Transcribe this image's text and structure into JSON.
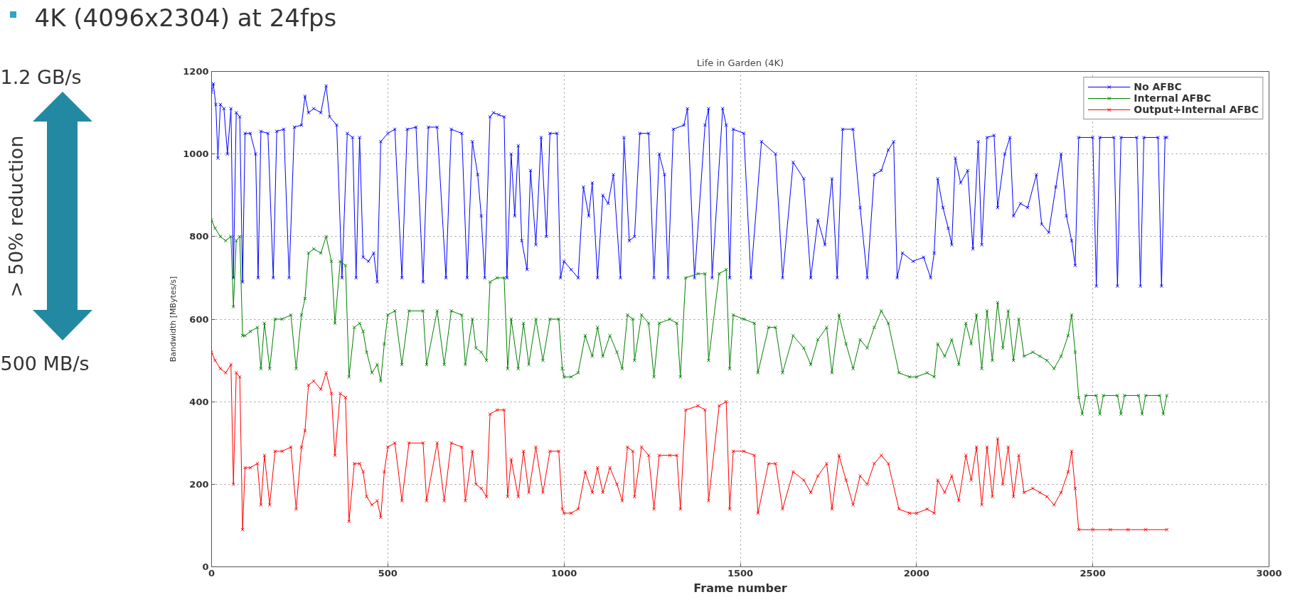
{
  "chart_data": {
    "type": "line",
    "title": "Life in Garden (4K)",
    "xlabel": "Frame number",
    "ylabel": "Bandwidth [MBytes/s]",
    "annotations": [
      "4K (4096x2304) at 24fps",
      "1.2 GB/s",
      "> 50% reduction",
      "500 MB/s"
    ],
    "xlim": [
      0,
      3000
    ],
    "xticks": [
      0,
      500,
      1000,
      1500,
      2000,
      2500,
      3000
    ],
    "ylim": [
      0,
      1200
    ],
    "yticks": [
      0,
      200,
      400,
      600,
      800,
      1000,
      1200
    ],
    "grid": true,
    "legend": "top right",
    "marker": "cross",
    "line_style": "solid",
    "series": [
      {
        "name": "No AFBC",
        "color": "#0000ff",
        "x": [
          0,
          5,
          12,
          18,
          25,
          35,
          45,
          55,
          62,
          70,
          80,
          88,
          95,
          110,
          125,
          132,
          140,
          160,
          175,
          185,
          205,
          220,
          235,
          255,
          265,
          275,
          290,
          310,
          325,
          335,
          355,
          370,
          385,
          400,
          410,
          420,
          430,
          445,
          460,
          470,
          480,
          500,
          520,
          540,
          555,
          580,
          600,
          615,
          640,
          665,
          680,
          710,
          725,
          740,
          755,
          765,
          775,
          790,
          800,
          815,
          830,
          838,
          850,
          860,
          870,
          880,
          895,
          905,
          920,
          935,
          950,
          960,
          980,
          990,
          1000,
          1020,
          1040,
          1055,
          1070,
          1080,
          1095,
          1110,
          1125,
          1140,
          1160,
          1170,
          1185,
          1200,
          1215,
          1240,
          1255,
          1270,
          1285,
          1295,
          1310,
          1340,
          1350,
          1370,
          1400,
          1410,
          1420,
          1450,
          1460,
          1470,
          1480,
          1510,
          1530,
          1560,
          1600,
          1620,
          1650,
          1680,
          1700,
          1720,
          1740,
          1760,
          1775,
          1790,
          1820,
          1840,
          1860,
          1880,
          1900,
          1920,
          1935,
          1945,
          1960,
          1990,
          2020,
          2040,
          2050,
          2060,
          2075,
          2090,
          2100,
          2110,
          2125,
          2145,
          2160,
          2175,
          2185,
          2200,
          2220,
          2230,
          2250,
          2265,
          2275,
          2295,
          2315,
          2340,
          2355,
          2375,
          2395,
          2410,
          2425,
          2440,
          2450,
          2460,
          2500,
          2510,
          2520,
          2560,
          2570,
          2580,
          2625,
          2635,
          2645,
          2685,
          2695,
          2705,
          2710
        ],
        "values": [
          1150,
          1170,
          1120,
          990,
          1120,
          1110,
          1000,
          1110,
          700,
          1100,
          1090,
          690,
          1050,
          1050,
          1000,
          700,
          1055,
          1050,
          700,
          1055,
          1060,
          700,
          1065,
          1070,
          1140,
          1100,
          1110,
          1100,
          1165,
          1090,
          1070,
          700,
          1050,
          1040,
          700,
          1040,
          750,
          740,
          760,
          690,
          1030,
          1050,
          1060,
          700,
          1060,
          1065,
          690,
          1065,
          1065,
          700,
          1060,
          1050,
          700,
          1030,
          950,
          850,
          700,
          1090,
          1100,
          1095,
          1090,
          700,
          1000,
          850,
          1020,
          790,
          720,
          960,
          780,
          1040,
          800,
          1050,
          1050,
          700,
          740,
          720,
          700,
          920,
          850,
          930,
          700,
          900,
          880,
          950,
          700,
          1040,
          790,
          800,
          1050,
          1050,
          700,
          1000,
          950,
          700,
          1060,
          1070,
          1110,
          700,
          1070,
          1110,
          700,
          1110,
          1070,
          700,
          1060,
          1050,
          700,
          1030,
          1000,
          700,
          980,
          940,
          700,
          840,
          780,
          940,
          700,
          1060,
          1060,
          870,
          700,
          950,
          960,
          1010,
          1030,
          700,
          760,
          740,
          750,
          700,
          760,
          940,
          870,
          820,
          780,
          990,
          930,
          960,
          770,
          1030,
          780,
          1040,
          1045,
          870,
          1000,
          1040,
          850,
          880,
          870,
          950,
          830,
          810,
          920,
          1000,
          850,
          790,
          730,
          1040,
          1040,
          680,
          1040,
          1040,
          680,
          1040,
          1040,
          680,
          1040,
          1040,
          680,
          1040,
          1040
        ]
      },
      {
        "name": "Internal AFBC",
        "color": "#008000",
        "x": [
          0,
          10,
          25,
          40,
          55,
          62,
          70,
          80,
          88,
          95,
          110,
          130,
          140,
          150,
          165,
          180,
          200,
          225,
          240,
          255,
          265,
          275,
          290,
          310,
          325,
          340,
          350,
          365,
          380,
          390,
          405,
          420,
          430,
          440,
          455,
          470,
          480,
          490,
          500,
          520,
          540,
          560,
          600,
          610,
          640,
          660,
          680,
          710,
          720,
          740,
          750,
          765,
          780,
          790,
          810,
          830,
          840,
          850,
          870,
          885,
          900,
          920,
          940,
          960,
          985,
          995,
          1000,
          1020,
          1040,
          1060,
          1080,
          1095,
          1110,
          1130,
          1150,
          1165,
          1180,
          1195,
          1200,
          1220,
          1240,
          1255,
          1270,
          1300,
          1320,
          1330,
          1345,
          1380,
          1400,
          1410,
          1440,
          1460,
          1470,
          1480,
          1510,
          1540,
          1550,
          1580,
          1600,
          1620,
          1650,
          1680,
          1700,
          1720,
          1745,
          1760,
          1780,
          1800,
          1820,
          1840,
          1860,
          1880,
          1900,
          1920,
          1950,
          1980,
          2000,
          2030,
          2050,
          2060,
          2080,
          2100,
          2120,
          2140,
          2155,
          2170,
          2185,
          2200,
          2215,
          2230,
          2245,
          2260,
          2275,
          2290,
          2305,
          2330,
          2350,
          2370,
          2390,
          2410,
          2430,
          2440,
          2450,
          2460,
          2470,
          2480,
          2510,
          2520,
          2530,
          2570,
          2580,
          2590,
          2630,
          2640,
          2650,
          2690,
          2700,
          2710
        ],
        "values": [
          840,
          820,
          800,
          790,
          800,
          630,
          790,
          800,
          560,
          560,
          570,
          580,
          480,
          590,
          480,
          600,
          600,
          610,
          480,
          610,
          650,
          760,
          770,
          760,
          800,
          740,
          590,
          740,
          730,
          460,
          580,
          590,
          570,
          520,
          470,
          490,
          450,
          540,
          610,
          620,
          490,
          620,
          620,
          490,
          620,
          490,
          620,
          610,
          490,
          600,
          530,
          520,
          500,
          690,
          700,
          700,
          480,
          600,
          480,
          590,
          490,
          600,
          500,
          600,
          600,
          480,
          460,
          460,
          470,
          560,
          510,
          580,
          510,
          560,
          520,
          480,
          610,
          600,
          500,
          610,
          590,
          460,
          590,
          600,
          590,
          460,
          700,
          710,
          710,
          500,
          710,
          720,
          480,
          610,
          600,
          590,
          470,
          580,
          580,
          470,
          560,
          530,
          490,
          550,
          580,
          470,
          610,
          540,
          480,
          550,
          530,
          580,
          620,
          590,
          470,
          460,
          460,
          470,
          460,
          540,
          510,
          550,
          490,
          590,
          540,
          610,
          480,
          620,
          500,
          640,
          530,
          620,
          500,
          600,
          510,
          520,
          510,
          500,
          480,
          510,
          560,
          610,
          520,
          410,
          370,
          415,
          415,
          370,
          415,
          415,
          370,
          415,
          415,
          370,
          415,
          415,
          370,
          415
        ]
      },
      {
        "name": "Output+Internal AFBC",
        "color": "#ff0000",
        "x": [
          0,
          10,
          25,
          40,
          55,
          62,
          70,
          80,
          88,
          95,
          110,
          130,
          140,
          150,
          165,
          180,
          200,
          225,
          240,
          255,
          265,
          275,
          290,
          310,
          325,
          340,
          350,
          365,
          380,
          390,
          405,
          420,
          430,
          440,
          455,
          470,
          480,
          490,
          500,
          520,
          540,
          560,
          600,
          610,
          640,
          660,
          680,
          710,
          720,
          740,
          750,
          765,
          780,
          790,
          810,
          830,
          840,
          850,
          870,
          885,
          900,
          920,
          940,
          960,
          985,
          995,
          1000,
          1020,
          1040,
          1060,
          1080,
          1095,
          1110,
          1130,
          1150,
          1165,
          1180,
          1195,
          1200,
          1220,
          1240,
          1255,
          1270,
          1300,
          1320,
          1330,
          1345,
          1380,
          1400,
          1410,
          1440,
          1460,
          1470,
          1480,
          1510,
          1540,
          1550,
          1580,
          1600,
          1620,
          1650,
          1680,
          1700,
          1720,
          1745,
          1760,
          1780,
          1800,
          1820,
          1840,
          1860,
          1880,
          1900,
          1920,
          1950,
          1980,
          2000,
          2030,
          2050,
          2060,
          2080,
          2100,
          2120,
          2140,
          2155,
          2170,
          2185,
          2200,
          2215,
          2230,
          2245,
          2260,
          2275,
          2290,
          2305,
          2330,
          2350,
          2370,
          2390,
          2410,
          2430,
          2440,
          2450,
          2460,
          2500,
          2550,
          2600,
          2650,
          2710
        ],
        "values": [
          520,
          500,
          480,
          470,
          490,
          200,
          470,
          460,
          90,
          240,
          240,
          250,
          150,
          270,
          150,
          280,
          280,
          290,
          140,
          290,
          330,
          440,
          450,
          430,
          470,
          420,
          270,
          420,
          410,
          110,
          250,
          250,
          230,
          170,
          150,
          160,
          120,
          230,
          290,
          300,
          160,
          300,
          300,
          160,
          300,
          160,
          300,
          290,
          160,
          280,
          200,
          190,
          170,
          370,
          380,
          380,
          170,
          260,
          170,
          280,
          180,
          290,
          180,
          280,
          280,
          140,
          130,
          130,
          140,
          230,
          180,
          240,
          180,
          240,
          200,
          160,
          290,
          280,
          170,
          290,
          270,
          140,
          270,
          270,
          270,
          140,
          380,
          390,
          380,
          160,
          390,
          400,
          140,
          280,
          280,
          270,
          130,
          250,
          250,
          140,
          230,
          210,
          180,
          220,
          250,
          140,
          270,
          210,
          150,
          220,
          200,
          250,
          270,
          250,
          140,
          130,
          130,
          140,
          130,
          210,
          180,
          220,
          160,
          270,
          210,
          290,
          150,
          290,
          170,
          310,
          200,
          290,
          170,
          270,
          180,
          190,
          180,
          170,
          150,
          180,
          230,
          280,
          190,
          90,
          90,
          90,
          90,
          90,
          90
        ]
      }
    ]
  }
}
